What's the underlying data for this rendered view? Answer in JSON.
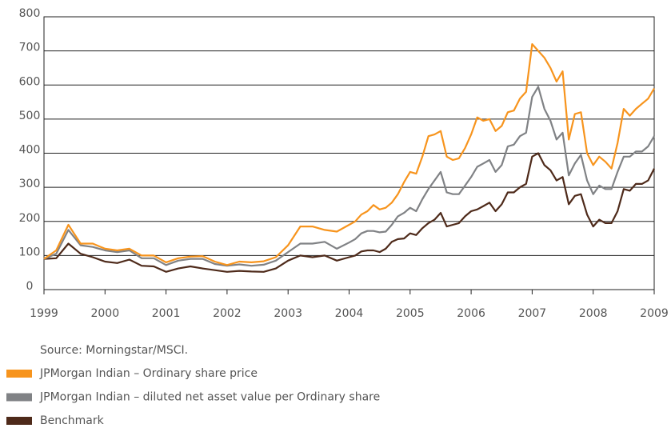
{
  "chart_data": {
    "type": "line",
    "source": "Source: Morningstar/MSCI.",
    "x": [
      1999.0,
      1999.2,
      1999.4,
      1999.6,
      1999.8,
      2000.0,
      2000.2,
      2000.4,
      2000.6,
      2000.8,
      2001.0,
      2001.2,
      2001.4,
      2001.6,
      2001.8,
      2002.0,
      2002.2,
      2002.4,
      2002.6,
      2002.8,
      2003.0,
      2003.2,
      2003.4,
      2003.6,
      2003.8,
      2004.0,
      2004.1,
      2004.2,
      2004.3,
      2004.4,
      2004.5,
      2004.6,
      2004.7,
      2004.8,
      2004.9,
      2005.0,
      2005.1,
      2005.2,
      2005.3,
      2005.4,
      2005.5,
      2005.6,
      2005.7,
      2005.8,
      2005.9,
      2006.0,
      2006.1,
      2006.2,
      2006.3,
      2006.4,
      2006.5,
      2006.6,
      2006.7,
      2006.8,
      2006.9,
      2007.0,
      2007.1,
      2007.2,
      2007.3,
      2007.4,
      2007.5,
      2007.6,
      2007.7,
      2007.8,
      2007.9,
      2008.0,
      2008.1,
      2008.2,
      2008.3,
      2008.4,
      2008.5,
      2008.6,
      2008.7,
      2008.8,
      2008.9,
      2009.0
    ],
    "series": [
      {
        "name": "JPMorgan Indian – Ordinary share price",
        "color": "#f7941d",
        "values": [
          90,
          115,
          190,
          135,
          135,
          120,
          115,
          120,
          100,
          100,
          80,
          92,
          97,
          98,
          82,
          72,
          82,
          80,
          83,
          95,
          130,
          185,
          185,
          175,
          170,
          190,
          200,
          220,
          230,
          248,
          235,
          240,
          255,
          280,
          315,
          345,
          340,
          390,
          450,
          455,
          465,
          390,
          380,
          385,
          415,
          455,
          505,
          495,
          500,
          465,
          480,
          520,
          525,
          560,
          580,
          720,
          700,
          680,
          650,
          610,
          640,
          440,
          515,
          520,
          400,
          365,
          390,
          375,
          355,
          430,
          530,
          510,
          530,
          545,
          560,
          590
        ]
      },
      {
        "name": "JPMorgan Indian – diluted net asset value per Ordinary share",
        "color": "#808285",
        "values": [
          90,
          105,
          175,
          130,
          125,
          115,
          110,
          115,
          92,
          92,
          72,
          85,
          90,
          90,
          75,
          70,
          74,
          70,
          73,
          85,
          110,
          135,
          135,
          140,
          120,
          138,
          148,
          165,
          172,
          172,
          168,
          170,
          190,
          215,
          225,
          240,
          230,
          265,
          295,
          320,
          345,
          285,
          280,
          280,
          305,
          330,
          360,
          370,
          380,
          345,
          365,
          420,
          425,
          450,
          460,
          565,
          595,
          530,
          495,
          440,
          460,
          335,
          370,
          395,
          320,
          280,
          305,
          295,
          295,
          345,
          390,
          390,
          405,
          405,
          420,
          450
        ]
      },
      {
        "name": "Benchmark",
        "color": "#4e2a1a",
        "values": [
          90,
          92,
          135,
          105,
          95,
          82,
          78,
          88,
          70,
          68,
          52,
          62,
          68,
          62,
          57,
          52,
          55,
          53,
          52,
          62,
          85,
          100,
          95,
          100,
          85,
          95,
          100,
          112,
          115,
          115,
          110,
          120,
          140,
          148,
          150,
          165,
          160,
          180,
          195,
          205,
          225,
          185,
          190,
          195,
          215,
          230,
          235,
          245,
          255,
          230,
          250,
          285,
          285,
          300,
          310,
          390,
          400,
          365,
          350,
          320,
          330,
          250,
          275,
          280,
          220,
          185,
          205,
          195,
          195,
          230,
          295,
          290,
          310,
          310,
          320,
          355
        ]
      }
    ],
    "xlim": [
      1999,
      2009
    ],
    "xticks": [
      1999,
      2000,
      2001,
      2002,
      2003,
      2004,
      2005,
      2006,
      2007,
      2008,
      2009
    ],
    "ylim": [
      0,
      800
    ],
    "yticks": [
      0,
      100,
      200,
      300,
      400,
      500,
      600,
      700,
      800
    ],
    "grid": true
  }
}
